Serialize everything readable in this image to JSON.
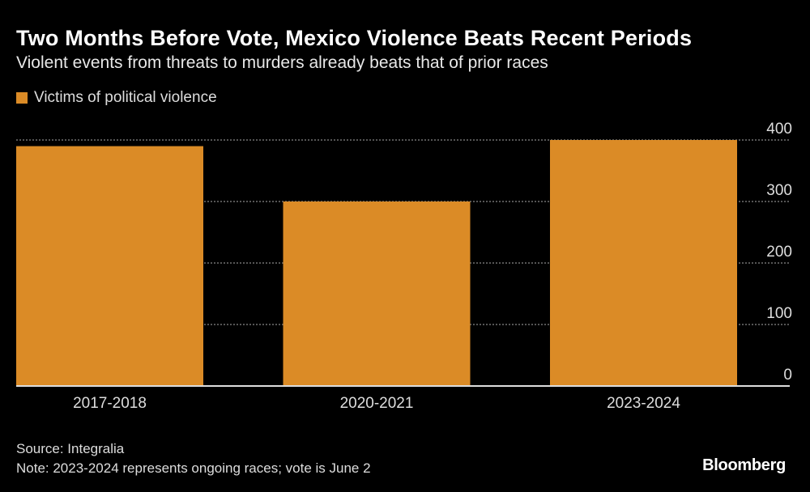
{
  "title": "Two Months Before Vote, Mexico Violence Beats Recent Periods",
  "subtitle": "Violent events from threats to murders already beats that of prior races",
  "source": "Source: Integralia",
  "note": "Note: 2023-2024 represents ongoing races; vote is June 2",
  "logo": "Bloomberg",
  "colors": {
    "bar": "#db8b26",
    "background": "#000000",
    "grid": "#888888"
  },
  "chart_data": {
    "type": "bar",
    "title": "Two Months Before Vote, Mexico Violence Beats Recent Periods",
    "categories": [
      "2017-2018",
      "2020-2021",
      "2023-2024"
    ],
    "series": [
      {
        "name": "Victims of political violence",
        "values": [
          390,
          300,
          400
        ]
      }
    ],
    "ylim": [
      0,
      400
    ],
    "yticks": [
      0,
      100,
      200,
      300,
      400
    ],
    "ytick_labels": [
      "0",
      "100",
      "200",
      "300",
      "400"
    ],
    "y_axis_position": "right",
    "grid": true,
    "legend_placement": "top-left"
  }
}
